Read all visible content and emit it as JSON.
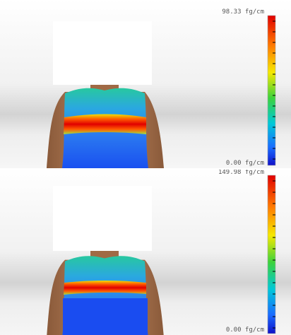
{
  "panels": [
    {
      "max_label": "98.33 fg/cm",
      "min_label": "0.00 fg/cm"
    },
    {
      "max_label": "149.98 fg/cm",
      "min_label": "0.00 fg/cm"
    }
  ]
}
